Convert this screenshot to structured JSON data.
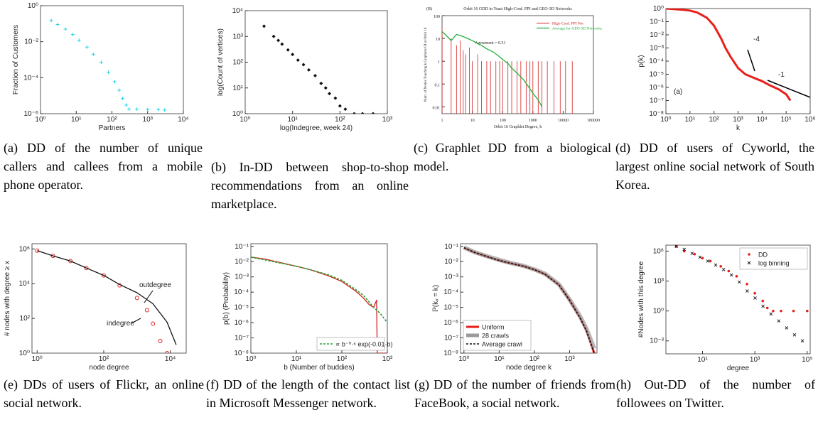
{
  "chart_data": [
    {
      "type": "scatter",
      "xscale": "log",
      "yscale": "log",
      "xlabel": "Partners",
      "ylabel": "Fraction of Customers",
      "caption": "(a) DD of the number of unique callers and callees from a mobile phone operator.",
      "xlim": [
        1,
        10000
      ],
      "ylim": [
        1e-06,
        1
      ],
      "xticks": [
        {
          "value": 1,
          "label": "10⁰"
        },
        {
          "value": 10,
          "label": "10¹"
        },
        {
          "value": 100,
          "label": "10²"
        },
        {
          "value": 1000,
          "label": "10³"
        },
        {
          "value": 10000,
          "label": "10⁴"
        }
      ],
      "yticks": [
        {
          "value": 1,
          "label": "10⁰"
        },
        {
          "value": 0.01,
          "label": "10⁻²"
        },
        {
          "value": 0.0001,
          "label": "10⁻⁴"
        },
        {
          "value": 1e-06,
          "label": "10⁻⁶"
        }
      ],
      "series": [
        {
          "color": "#22d3e6",
          "marker": "plus",
          "x": [
            2,
            3,
            5,
            8,
            12,
            20,
            30,
            50,
            80,
            120,
            160,
            200,
            250,
            300,
            500,
            1000,
            2000,
            3000
          ],
          "values": [
            0.15,
            0.09,
            0.05,
            0.025,
            0.012,
            0.005,
            0.002,
            0.0007,
            0.0002,
            6e-05,
            2e-05,
            7e-06,
            3e-06,
            1.8e-06,
            1.8e-06,
            1.7e-06,
            1.7e-06,
            1.6e-06
          ]
        }
      ]
    },
    {
      "type": "scatter",
      "xscale": "log",
      "yscale": "log",
      "xlabel": "log(Indegree, week 24)",
      "ylabel": "log(Count of vertices)",
      "caption": "(b) In-DD between shop-to-shop recommendations from an online marketplace.",
      "xlim": [
        1,
        1000
      ],
      "ylim": [
        1,
        10000
      ],
      "xticks": [
        {
          "value": 1,
          "label": "10⁰"
        },
        {
          "value": 10,
          "label": "10¹"
        },
        {
          "value": 100,
          "label": "10²"
        },
        {
          "value": 1000,
          "label": "10³"
        }
      ],
      "yticks": [
        {
          "value": 1,
          "label": "10⁰"
        },
        {
          "value": 10,
          "label": "10¹"
        },
        {
          "value": 100,
          "label": "10²"
        },
        {
          "value": 1000,
          "label": "10³"
        },
        {
          "value": 10000,
          "label": "10⁴"
        }
      ],
      "series": [
        {
          "color": "#111111",
          "marker": "diamond",
          "x": [
            2.5,
            4,
            5,
            6,
            8,
            10,
            13,
            17,
            22,
            30,
            40,
            50,
            60,
            80,
            100,
            130,
            200,
            300,
            500
          ],
          "values": [
            2500,
            1000,
            700,
            500,
            300,
            200,
            120,
            80,
            50,
            30,
            15,
            10,
            6,
            4,
            2,
            1.5,
            1,
            1,
            1
          ]
        }
      ]
    },
    {
      "type": "scatter",
      "xscale": "log",
      "yscale": "log",
      "title": "Orbit 16 GDD in Yeast High-Conf. PPI and GEO-3D Networks",
      "xlabel": "Orbit 16 Graphlet Degree, k",
      "ylabel": "Num. of Nodes Touching k Graphlets Of at Orbit 16",
      "caption": "(c) Graphlet DD from a biological model.",
      "annotations": [
        "(B)",
        "Agreement = 0.51"
      ],
      "legend": "upper right",
      "xlim": [
        1,
        100000
      ],
      "ylim": [
        0.005,
        100
      ],
      "xticks": [
        1,
        10,
        100,
        1000,
        10000,
        100000
      ],
      "yticks": [
        100,
        10,
        1,
        0.1,
        0.01
      ],
      "series": [
        {
          "name": "High-Conf. PPI Net",
          "color": "#d42020",
          "marker": "vlines",
          "x": [
            1,
            2,
            3,
            4,
            5,
            6,
            8,
            10,
            15,
            20,
            30,
            40,
            60,
            80,
            100,
            150,
            200,
            300,
            400,
            600,
            800,
            1000,
            1500,
            2000,
            3000,
            5000,
            8000,
            12000,
            20000
          ],
          "values": [
            30,
            10,
            5,
            8,
            3,
            2,
            4,
            1,
            2,
            1,
            1,
            1,
            1,
            1,
            1,
            1,
            1,
            1,
            1,
            1,
            1,
            1,
            1,
            1,
            1,
            1,
            1,
            1,
            1
          ]
        },
        {
          "name": "Average for GEO-3D Networks",
          "color": "#22b03a",
          "marker": "line",
          "x": [
            1,
            1.5,
            2,
            3,
            5,
            7,
            10,
            15,
            20,
            30,
            50,
            70,
            100,
            150,
            200,
            300,
            500,
            700,
            1000,
            1500,
            2000
          ],
          "values": [
            20,
            12,
            8,
            15,
            12,
            10,
            8,
            6,
            5,
            3.5,
            2.5,
            1.8,
            1.2,
            0.8,
            0.5,
            0.3,
            0.15,
            0.08,
            0.04,
            0.02,
            0.01
          ]
        }
      ]
    },
    {
      "type": "scatter",
      "xscale": "log",
      "yscale": "log",
      "xlabel": "k",
      "ylabel": "p(k)",
      "caption": "(d) DD of users of Cyworld, the largest online social network of South Korea.",
      "annotations": [
        "-4",
        "-1",
        "(a)"
      ],
      "xlim": [
        1,
        1000000
      ],
      "ylim": [
        1e-08,
        1
      ],
      "xticks": [
        {
          "value": 1,
          "label": "10⁰"
        },
        {
          "value": 10,
          "label": "10¹"
        },
        {
          "value": 100,
          "label": "10²"
        },
        {
          "value": 1000,
          "label": "10³"
        },
        {
          "value": 10000,
          "label": "10⁴"
        },
        {
          "value": 100000,
          "label": "10⁵"
        },
        {
          "value": 1000000,
          "label": "10⁶"
        }
      ],
      "yticks": [
        {
          "value": 1,
          "label": "10⁰"
        },
        {
          "value": 0.1,
          "label": "10⁻¹"
        },
        {
          "value": 0.01,
          "label": "10⁻²"
        },
        {
          "value": 0.001,
          "label": "10⁻³"
        },
        {
          "value": 0.0001,
          "label": "10⁻⁴"
        },
        {
          "value": 1e-05,
          "label": "10⁻⁵"
        },
        {
          "value": 1e-06,
          "label": "10⁻⁶"
        },
        {
          "value": 1e-07,
          "label": "10⁻⁷"
        },
        {
          "value": 1e-08,
          "label": "10⁻⁸"
        }
      ],
      "series": [
        {
          "color": "#e8201a",
          "marker": "thick",
          "x": [
            1,
            2,
            5,
            10,
            20,
            50,
            100,
            200,
            300,
            500,
            1000,
            2000,
            5000,
            10000,
            20000,
            50000,
            100000,
            150000
          ],
          "values": [
            1,
            0.9,
            0.8,
            0.7,
            0.5,
            0.2,
            0.05,
            0.005,
            0.001,
            0.0002,
            3e-05,
            1e-05,
            5e-06,
            3e-06,
            1.5e-06,
            7e-07,
            3e-07,
            1e-07
          ]
        }
      ]
    },
    {
      "type": "scatter",
      "xscale": "log",
      "yscale": "log",
      "xlabel": "node degree",
      "ylabel": "# nodes with degree ≥ x",
      "caption": "(e) DDs of users of Flickr, an online social network.",
      "annotations": [
        "outdegree",
        "indegree"
      ],
      "xlim": [
        0.7,
        30000
      ],
      "ylim": [
        1,
        2000000
      ],
      "xticks": [
        {
          "value": 1,
          "label": "10⁰"
        },
        {
          "value": 100,
          "label": "10²"
        },
        {
          "value": 10000,
          "label": "10⁴"
        }
      ],
      "yticks": [
        {
          "value": 1000000,
          "label": "10⁶"
        },
        {
          "value": 10000,
          "label": "10⁴"
        },
        {
          "value": 100,
          "label": "10²"
        },
        {
          "value": 1,
          "label": "10⁰"
        }
      ],
      "series": [
        {
          "name": "indegree",
          "color": "#e8201a",
          "marker": "circle",
          "x": [
            1,
            3,
            10,
            30,
            100,
            300,
            1000,
            2000,
            3000,
            5000,
            8000
          ],
          "values": [
            800000,
            400000,
            200000,
            80000,
            30000,
            8000,
            1500,
            300,
            50,
            5,
            1
          ]
        },
        {
          "name": "outdegree",
          "color": "#111111",
          "marker": "line",
          "x": [
            1,
            3,
            10,
            30,
            100,
            300,
            1000,
            3000,
            8000,
            15000
          ],
          "values": [
            800000,
            400000,
            200000,
            80000,
            30000,
            9000,
            3000,
            700,
            60,
            3
          ]
        }
      ]
    },
    {
      "type": "scatter",
      "xscale": "log",
      "yscale": "log",
      "xlabel": "b (Number of buddies)",
      "ylabel": "p(b) (Probability)",
      "caption": "(f) DD of the length of the contact list in Microsoft Messenger network.",
      "legend": "lower right",
      "xlim": [
        1,
        1000
      ],
      "ylim": [
        1e-08,
        0.15
      ],
      "xticks": [
        {
          "value": 1,
          "label": "10⁰"
        },
        {
          "value": 10,
          "label": "10¹"
        },
        {
          "value": 100,
          "label": "10²"
        },
        {
          "value": 1000,
          "label": "10³"
        }
      ],
      "yticks": [
        {
          "value": 0.1,
          "label": "10⁻¹"
        },
        {
          "value": 0.01,
          "label": "10⁻²"
        },
        {
          "value": 0.001,
          "label": "10⁻³"
        },
        {
          "value": 0.0001,
          "label": "10⁻⁴"
        },
        {
          "value": 1e-05,
          "label": "10⁻⁵"
        },
        {
          "value": 1e-06,
          "label": "10⁻⁶"
        },
        {
          "value": 1e-07,
          "label": "10⁻⁷"
        },
        {
          "value": 1e-08,
          "label": "10⁻⁸"
        }
      ],
      "series": [
        {
          "color": "#d42020",
          "marker": "line",
          "x": [
            1,
            2,
            5,
            10,
            20,
            50,
            100,
            200,
            300,
            400,
            500,
            580,
            600,
            700,
            1000
          ],
          "values": [
            0.02,
            0.015,
            0.008,
            0.005,
            0.003,
            0.0012,
            0.0005,
            0.00012,
            4e-05,
            1.5e-05,
            1e-05,
            3e-05,
            1e-08,
            1e-08,
            1e-08
          ]
        },
        {
          "name": "∝ b⁻⁰·⁶ exp(-0.01·b)",
          "color": "#22a030",
          "marker": "dashed",
          "x": [
            1,
            2,
            5,
            10,
            20,
            50,
            100,
            200,
            300,
            500,
            700,
            1000
          ],
          "values": [
            0.02,
            0.013,
            0.0075,
            0.005,
            0.003,
            0.0014,
            0.0006,
            0.00015,
            6e-05,
            1e-05,
            4e-06,
            1e-06
          ]
        }
      ]
    },
    {
      "type": "scatter",
      "xscale": "log",
      "yscale": "log",
      "xlabel": "node degree k",
      "ylabel": "ℙ(kᵥ = k)",
      "caption": "(g) DD of the number of friends from FaceBook, a social network.",
      "legend": "lower left",
      "xlim": [
        0.8,
        6000
      ],
      "ylim": [
        1e-08,
        0.15
      ],
      "xticks": [
        {
          "value": 1,
          "label": "10⁰"
        },
        {
          "value": 10,
          "label": "10¹"
        },
        {
          "value": 100,
          "label": "10²"
        },
        {
          "value": 1000,
          "label": "10³"
        }
      ],
      "yticks": [
        {
          "value": 0.1,
          "label": "10⁻¹"
        },
        {
          "value": 0.01,
          "label": "10⁻²"
        },
        {
          "value": 0.001,
          "label": "10⁻³"
        },
        {
          "value": 0.0001,
          "label": "10⁻⁴"
        },
        {
          "value": 1e-05,
          "label": "10⁻⁵"
        },
        {
          "value": 1e-06,
          "label": "10⁻⁶"
        },
        {
          "value": 1e-07,
          "label": "10⁻⁷"
        },
        {
          "value": 1e-08,
          "label": "10⁻⁸"
        }
      ],
      "series": [
        {
          "name": "Uniform",
          "color": "#e8201a",
          "marker": "thick",
          "x": [
            1,
            2,
            5,
            10,
            20,
            50,
            100,
            200,
            500,
            1000,
            2000,
            3000,
            5000
          ],
          "values": [
            0.08,
            0.04,
            0.02,
            0.012,
            0.008,
            0.005,
            0.003,
            0.0015,
            0.0003,
            3e-05,
            2e-06,
            3e-07,
            1e-08
          ]
        },
        {
          "name": "28 crawls",
          "color": "#9a9a9a",
          "marker": "band",
          "x": [
            1,
            2,
            5,
            10,
            20,
            50,
            100,
            200,
            500,
            1000,
            2000,
            3000,
            5000
          ],
          "values": [
            0.085,
            0.042,
            0.021,
            0.013,
            0.0085,
            0.0052,
            0.0031,
            0.0016,
            0.00032,
            3.3e-05,
            2.5e-06,
            4e-07,
            2e-08
          ]
        },
        {
          "name": "Average crawl",
          "color": "#111111",
          "marker": "dashed",
          "x": [
            1,
            2,
            5,
            10,
            20,
            50,
            100,
            200,
            500,
            1000,
            2000,
            3000,
            5000
          ],
          "values": [
            0.082,
            0.041,
            0.02,
            0.012,
            0.008,
            0.005,
            0.003,
            0.0015,
            0.0003,
            3e-05,
            2e-06,
            3e-07,
            1e-08
          ]
        }
      ]
    },
    {
      "type": "scatter",
      "xscale": "log",
      "yscale": "log",
      "xlabel": "degree",
      "ylabel": "#Nodes with this degree",
      "caption": "(h) Out-DD of the number of followees on Twitter.",
      "legend": "upper right",
      "xlim": [
        0.4,
        130000
      ],
      "ylim": [
        5e-05,
        4000000
      ],
      "xticks": [
        {
          "value": 10,
          "label": "10¹"
        },
        {
          "value": 1000,
          "label": "10³"
        },
        {
          "value": 100000,
          "label": "10⁵"
        }
      ],
      "yticks": [
        {
          "value": 1000000,
          "label": "10⁶"
        },
        {
          "value": 1000,
          "label": "10³"
        },
        {
          "value": 1,
          "label": "10⁰"
        },
        {
          "value": 0.001,
          "label": "10⁻³"
        }
      ],
      "series": [
        {
          "name": "DD",
          "color": "#e8201a",
          "marker": "dot",
          "x": [
            1,
            2,
            5,
            10,
            20,
            50,
            100,
            200,
            500,
            1000,
            2000,
            3000,
            5000,
            10000,
            30000,
            100000
          ],
          "values": [
            3000000,
            1000000,
            500000,
            200000,
            100000,
            30000,
            10000,
            3000,
            500,
            60,
            10,
            2,
            1,
            1,
            1,
            1
          ]
        },
        {
          "name": "log binning",
          "color": "#111111",
          "marker": "x",
          "x": [
            1,
            2,
            4,
            8,
            16,
            32,
            64,
            128,
            256,
            512,
            1024,
            2048,
            4096,
            8192,
            16384,
            32768,
            65536
          ],
          "values": [
            3000000,
            1500000,
            600000,
            250000,
            100000,
            40000,
            14000,
            4000,
            800,
            100,
            20,
            3,
            0.5,
            0.1,
            0.02,
            0.004,
            0.001
          ]
        }
      ]
    }
  ]
}
